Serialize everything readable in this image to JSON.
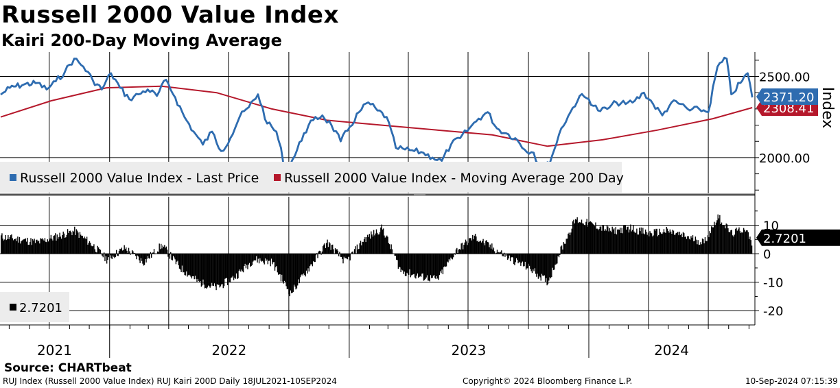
{
  "title": "Russell 2000 Value Index",
  "subtitle": "Kairi 200-Day Moving Average",
  "source": "Source: CHARTbeat",
  "footer": {
    "description": "RUJ Index (Russell 2000 Value Index) RUJ Kairi 200D  Daily 18JUL2021-10SEP2024",
    "copyright": "Copyright© 2024 Bloomberg Finance L.P.",
    "timestamp": "10-Sep-2024 07:15:39"
  },
  "colors": {
    "price": "#2e6cb0",
    "moving_average": "#b5182b",
    "kairi": "#000000",
    "last_price_badge": "#2e6cb0",
    "ma_badge": "#b5182b"
  },
  "chart_data": [
    {
      "type": "line",
      "panel": "price",
      "axis_label": "Index",
      "ylim": [
        1780,
        2650
      ],
      "y_ticks": [
        "2500.00",
        "2000.00"
      ],
      "y_tick_values": [
        2500,
        2000
      ],
      "grid": true,
      "legend_position": "bottom-left",
      "last_price_label": "2371.20",
      "moving_average_label": "2308.41",
      "series": [
        {
          "name": "Russell 2000 Value Index - Last Price",
          "points": [
            [
              "2021-07-19",
              2388
            ],
            [
              "2021-08-02",
              2430
            ],
            [
              "2021-08-23",
              2450
            ],
            [
              "2021-09-13",
              2460
            ],
            [
              "2021-09-27",
              2420
            ],
            [
              "2021-10-11",
              2470
            ],
            [
              "2021-10-25",
              2530
            ],
            [
              "2021-11-08",
              2610
            ],
            [
              "2021-11-22",
              2560
            ],
            [
              "2021-12-06",
              2480
            ],
            [
              "2021-12-20",
              2420
            ],
            [
              "2022-01-03",
              2520
            ],
            [
              "2022-01-17",
              2430
            ],
            [
              "2022-01-31",
              2360
            ],
            [
              "2022-02-14",
              2390
            ],
            [
              "2022-02-28",
              2420
            ],
            [
              "2022-03-14",
              2380
            ],
            [
              "2022-03-28",
              2480
            ],
            [
              "2022-04-11",
              2370
            ],
            [
              "2022-04-25",
              2250
            ],
            [
              "2022-05-09",
              2160
            ],
            [
              "2022-05-23",
              2080
            ],
            [
              "2022-06-06",
              2160
            ],
            [
              "2022-06-20",
              2040
            ],
            [
              "2022-07-04",
              2120
            ],
            [
              "2022-07-18",
              2250
            ],
            [
              "2022-08-01",
              2310
            ],
            [
              "2022-08-15",
              2390
            ],
            [
              "2022-08-29",
              2210
            ],
            [
              "2022-09-12",
              2160
            ],
            [
              "2022-09-26",
              1930
            ],
            [
              "2022-10-10",
              2010
            ],
            [
              "2022-10-24",
              2150
            ],
            [
              "2022-11-07",
              2230
            ],
            [
              "2022-11-21",
              2260
            ],
            [
              "2022-12-05",
              2200
            ],
            [
              "2022-12-19",
              2100
            ],
            [
              "2023-01-02",
              2190
            ],
            [
              "2023-01-16",
              2280
            ],
            [
              "2023-01-30",
              2340
            ],
            [
              "2023-02-13",
              2290
            ],
            [
              "2023-02-27",
              2250
            ],
            [
              "2023-03-13",
              2060
            ],
            [
              "2023-03-27",
              2050
            ],
            [
              "2023-04-10",
              2040
            ],
            [
              "2023-04-24",
              2030
            ],
            [
              "2023-05-08",
              2000
            ],
            [
              "2023-05-22",
              1980
            ],
            [
              "2023-06-05",
              2080
            ],
            [
              "2023-06-19",
              2120
            ],
            [
              "2023-07-03",
              2180
            ],
            [
              "2023-07-17",
              2240
            ],
            [
              "2023-07-31",
              2280
            ],
            [
              "2023-08-14",
              2180
            ],
            [
              "2023-08-28",
              2150
            ],
            [
              "2023-09-11",
              2120
            ],
            [
              "2023-09-25",
              2050
            ],
            [
              "2023-10-09",
              2030
            ],
            [
              "2023-10-23",
              1900
            ],
            [
              "2023-11-06",
              2010
            ],
            [
              "2023-11-20",
              2180
            ],
            [
              "2023-12-04",
              2280
            ],
            [
              "2023-12-18",
              2380
            ],
            [
              "2024-01-01",
              2360
            ],
            [
              "2024-01-15",
              2290
            ],
            [
              "2024-01-29",
              2300
            ],
            [
              "2024-02-12",
              2340
            ],
            [
              "2024-02-26",
              2330
            ],
            [
              "2024-03-11",
              2350
            ],
            [
              "2024-03-25",
              2400
            ],
            [
              "2024-04-08",
              2330
            ],
            [
              "2024-04-22",
              2260
            ],
            [
              "2024-05-06",
              2340
            ],
            [
              "2024-05-20",
              2330
            ],
            [
              "2024-06-03",
              2290
            ],
            [
              "2024-06-17",
              2300
            ],
            [
              "2024-07-01",
              2280
            ],
            [
              "2024-07-15",
              2560
            ],
            [
              "2024-07-29",
              2610
            ],
            [
              "2024-08-05",
              2390
            ],
            [
              "2024-08-19",
              2460
            ],
            [
              "2024-08-30",
              2520
            ],
            [
              "2024-09-06",
              2371
            ]
          ]
        },
        {
          "name": "Russell 2000 Value Index - Moving Average 200 Day",
          "points": [
            [
              "2021-07-19",
              2250
            ],
            [
              "2021-10-04",
              2350
            ],
            [
              "2021-12-27",
              2430
            ],
            [
              "2022-03-21",
              2440
            ],
            [
              "2022-06-13",
              2400
            ],
            [
              "2022-09-05",
              2300
            ],
            [
              "2022-11-28",
              2230
            ],
            [
              "2023-02-20",
              2200
            ],
            [
              "2023-05-15",
              2170
            ],
            [
              "2023-08-07",
              2140
            ],
            [
              "2023-10-30",
              2070
            ],
            [
              "2024-01-22",
              2110
            ],
            [
              "2024-04-15",
              2170
            ],
            [
              "2024-07-08",
              2240
            ],
            [
              "2024-09-06",
              2308
            ]
          ]
        }
      ]
    },
    {
      "type": "bar",
      "panel": "kairi",
      "ylim": [
        -25,
        20
      ],
      "y_ticks": [
        "10",
        "0",
        "-10",
        "-20"
      ],
      "y_tick_values": [
        10,
        0,
        -10,
        -20
      ],
      "grid": true,
      "last_value_label": "2.7201",
      "legend": [
        {
          "name": "2.7201"
        }
      ],
      "points": [
        [
          "2021-07-19",
          6
        ],
        [
          "2021-08-16",
          5
        ],
        [
          "2021-09-13",
          4
        ],
        [
          "2021-10-11",
          6
        ],
        [
          "2021-11-08",
          8
        ],
        [
          "2021-12-06",
          3
        ],
        [
          "2021-12-27",
          -2
        ],
        [
          "2022-01-24",
          2
        ],
        [
          "2022-02-21",
          -3
        ],
        [
          "2022-03-21",
          3
        ],
        [
          "2022-04-18",
          -5
        ],
        [
          "2022-05-16",
          -10
        ],
        [
          "2022-06-13",
          -12
        ],
        [
          "2022-07-11",
          -8
        ],
        [
          "2022-08-08",
          -2
        ],
        [
          "2022-09-05",
          -3
        ],
        [
          "2022-10-03",
          -14
        ],
        [
          "2022-10-31",
          -5
        ],
        [
          "2022-11-28",
          4
        ],
        [
          "2022-12-26",
          -3
        ],
        [
          "2023-01-23",
          5
        ],
        [
          "2023-02-20",
          9
        ],
        [
          "2023-03-20",
          -6
        ],
        [
          "2023-04-17",
          -8
        ],
        [
          "2023-05-15",
          -9
        ],
        [
          "2023-06-12",
          1
        ],
        [
          "2023-07-10",
          6
        ],
        [
          "2023-08-07",
          2
        ],
        [
          "2023-09-04",
          -2
        ],
        [
          "2023-10-02",
          -5
        ],
        [
          "2023-10-30",
          -10
        ],
        [
          "2023-11-20",
          2
        ],
        [
          "2023-12-11",
          12
        ],
        [
          "2024-01-08",
          10
        ],
        [
          "2024-02-05",
          8
        ],
        [
          "2024-03-04",
          9
        ],
        [
          "2024-04-01",
          7
        ],
        [
          "2024-04-29",
          8
        ],
        [
          "2024-05-27",
          6
        ],
        [
          "2024-06-24",
          4
        ],
        [
          "2024-07-15",
          13
        ],
        [
          "2024-08-05",
          7
        ],
        [
          "2024-08-26",
          9
        ],
        [
          "2024-09-06",
          2.72
        ]
      ]
    }
  ],
  "x_axis": {
    "year_labels": [
      "2021",
      "2022",
      "2023",
      "2024"
    ],
    "range": [
      "2021-07-18",
      "2024-09-10"
    ]
  }
}
